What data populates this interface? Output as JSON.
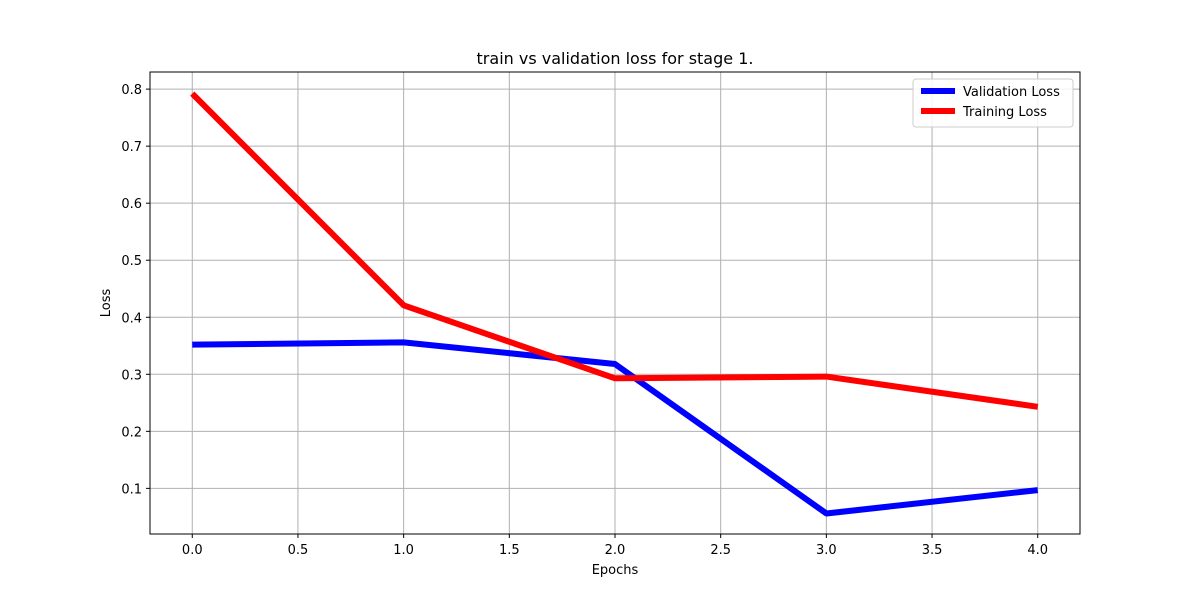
{
  "chart_data": {
    "type": "line",
    "title": "train vs validation loss for stage 1.",
    "xlabel": "Epochs",
    "ylabel": "Loss",
    "x": [
      0,
      1,
      2,
      3,
      4
    ],
    "xlim": [
      -0.2,
      4.2
    ],
    "ylim": [
      0.02,
      0.83
    ],
    "xticks": [
      0.0,
      0.5,
      1.0,
      1.5,
      2.0,
      2.5,
      3.0,
      3.5,
      4.0
    ],
    "xtick_labels": [
      "0.0",
      "0.5",
      "1.0",
      "1.5",
      "2.0",
      "2.5",
      "3.0",
      "3.5",
      "4.0"
    ],
    "yticks": [
      0.1,
      0.2,
      0.3,
      0.4,
      0.5,
      0.6,
      0.7,
      0.8
    ],
    "ytick_labels": [
      "0.1",
      "0.2",
      "0.3",
      "0.4",
      "0.5",
      "0.6",
      "0.7",
      "0.8"
    ],
    "grid": true,
    "legend_position": "top-right",
    "series": [
      {
        "name": "Validation Loss",
        "color": "#0000ff",
        "values": [
          0.352,
          0.356,
          0.318,
          0.056,
          0.097
        ]
      },
      {
        "name": "Training Loss",
        "color": "#ff0000",
        "values": [
          0.792,
          0.421,
          0.293,
          0.296,
          0.243
        ]
      }
    ]
  }
}
